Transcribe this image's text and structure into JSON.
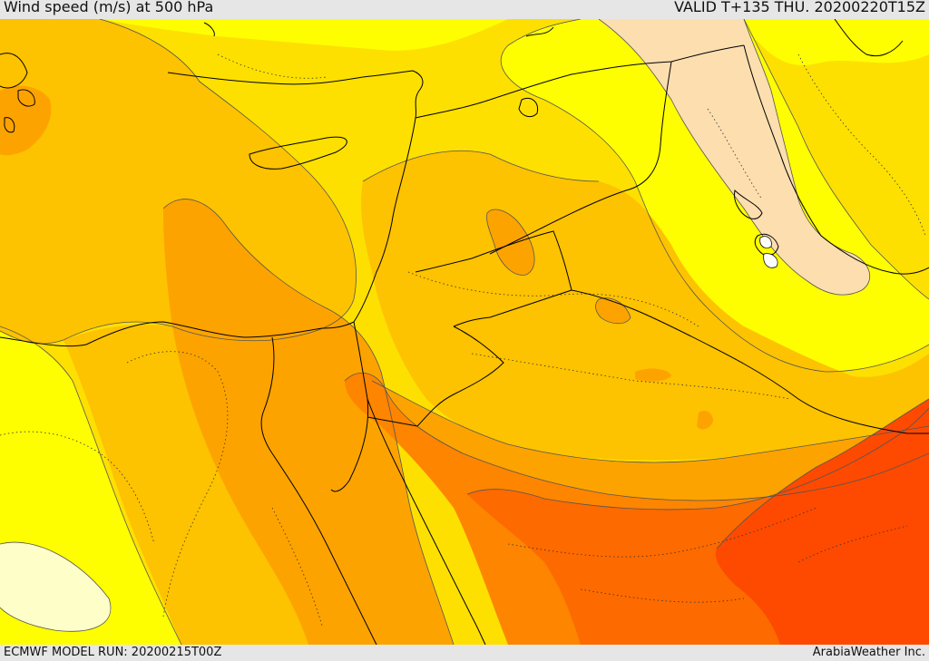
{
  "header": {
    "title": "Wind speed (m/s) at 500 hPa",
    "valid_time": "VALID T+135 THU. 20200220T15Z"
  },
  "footer": {
    "model_run": "ECMWF MODEL RUN: 20200215T00Z",
    "credit": "ArabiaWeather Inc."
  },
  "map": {
    "variable": "wind speed at 500 hPa",
    "units": "m/s",
    "region": "Eastern Mediterranean, Levant, Arabian Peninsula and Gulf",
    "shading_colors": {
      "lightest": "#fefec8",
      "pale_peach": "#fddeaf",
      "yellow": "#fefe00",
      "golden": "#fde000",
      "amber": "#fdc200",
      "orange_light": "#fda300",
      "orange": "#fd8500",
      "orange_red": "#fd6a00",
      "red_orange": "#fd4a00"
    },
    "line_colors": {
      "borders": "#000000",
      "coastlines": "#000000",
      "contours": "#555555",
      "dotted_isolines": "#333333"
    }
  }
}
